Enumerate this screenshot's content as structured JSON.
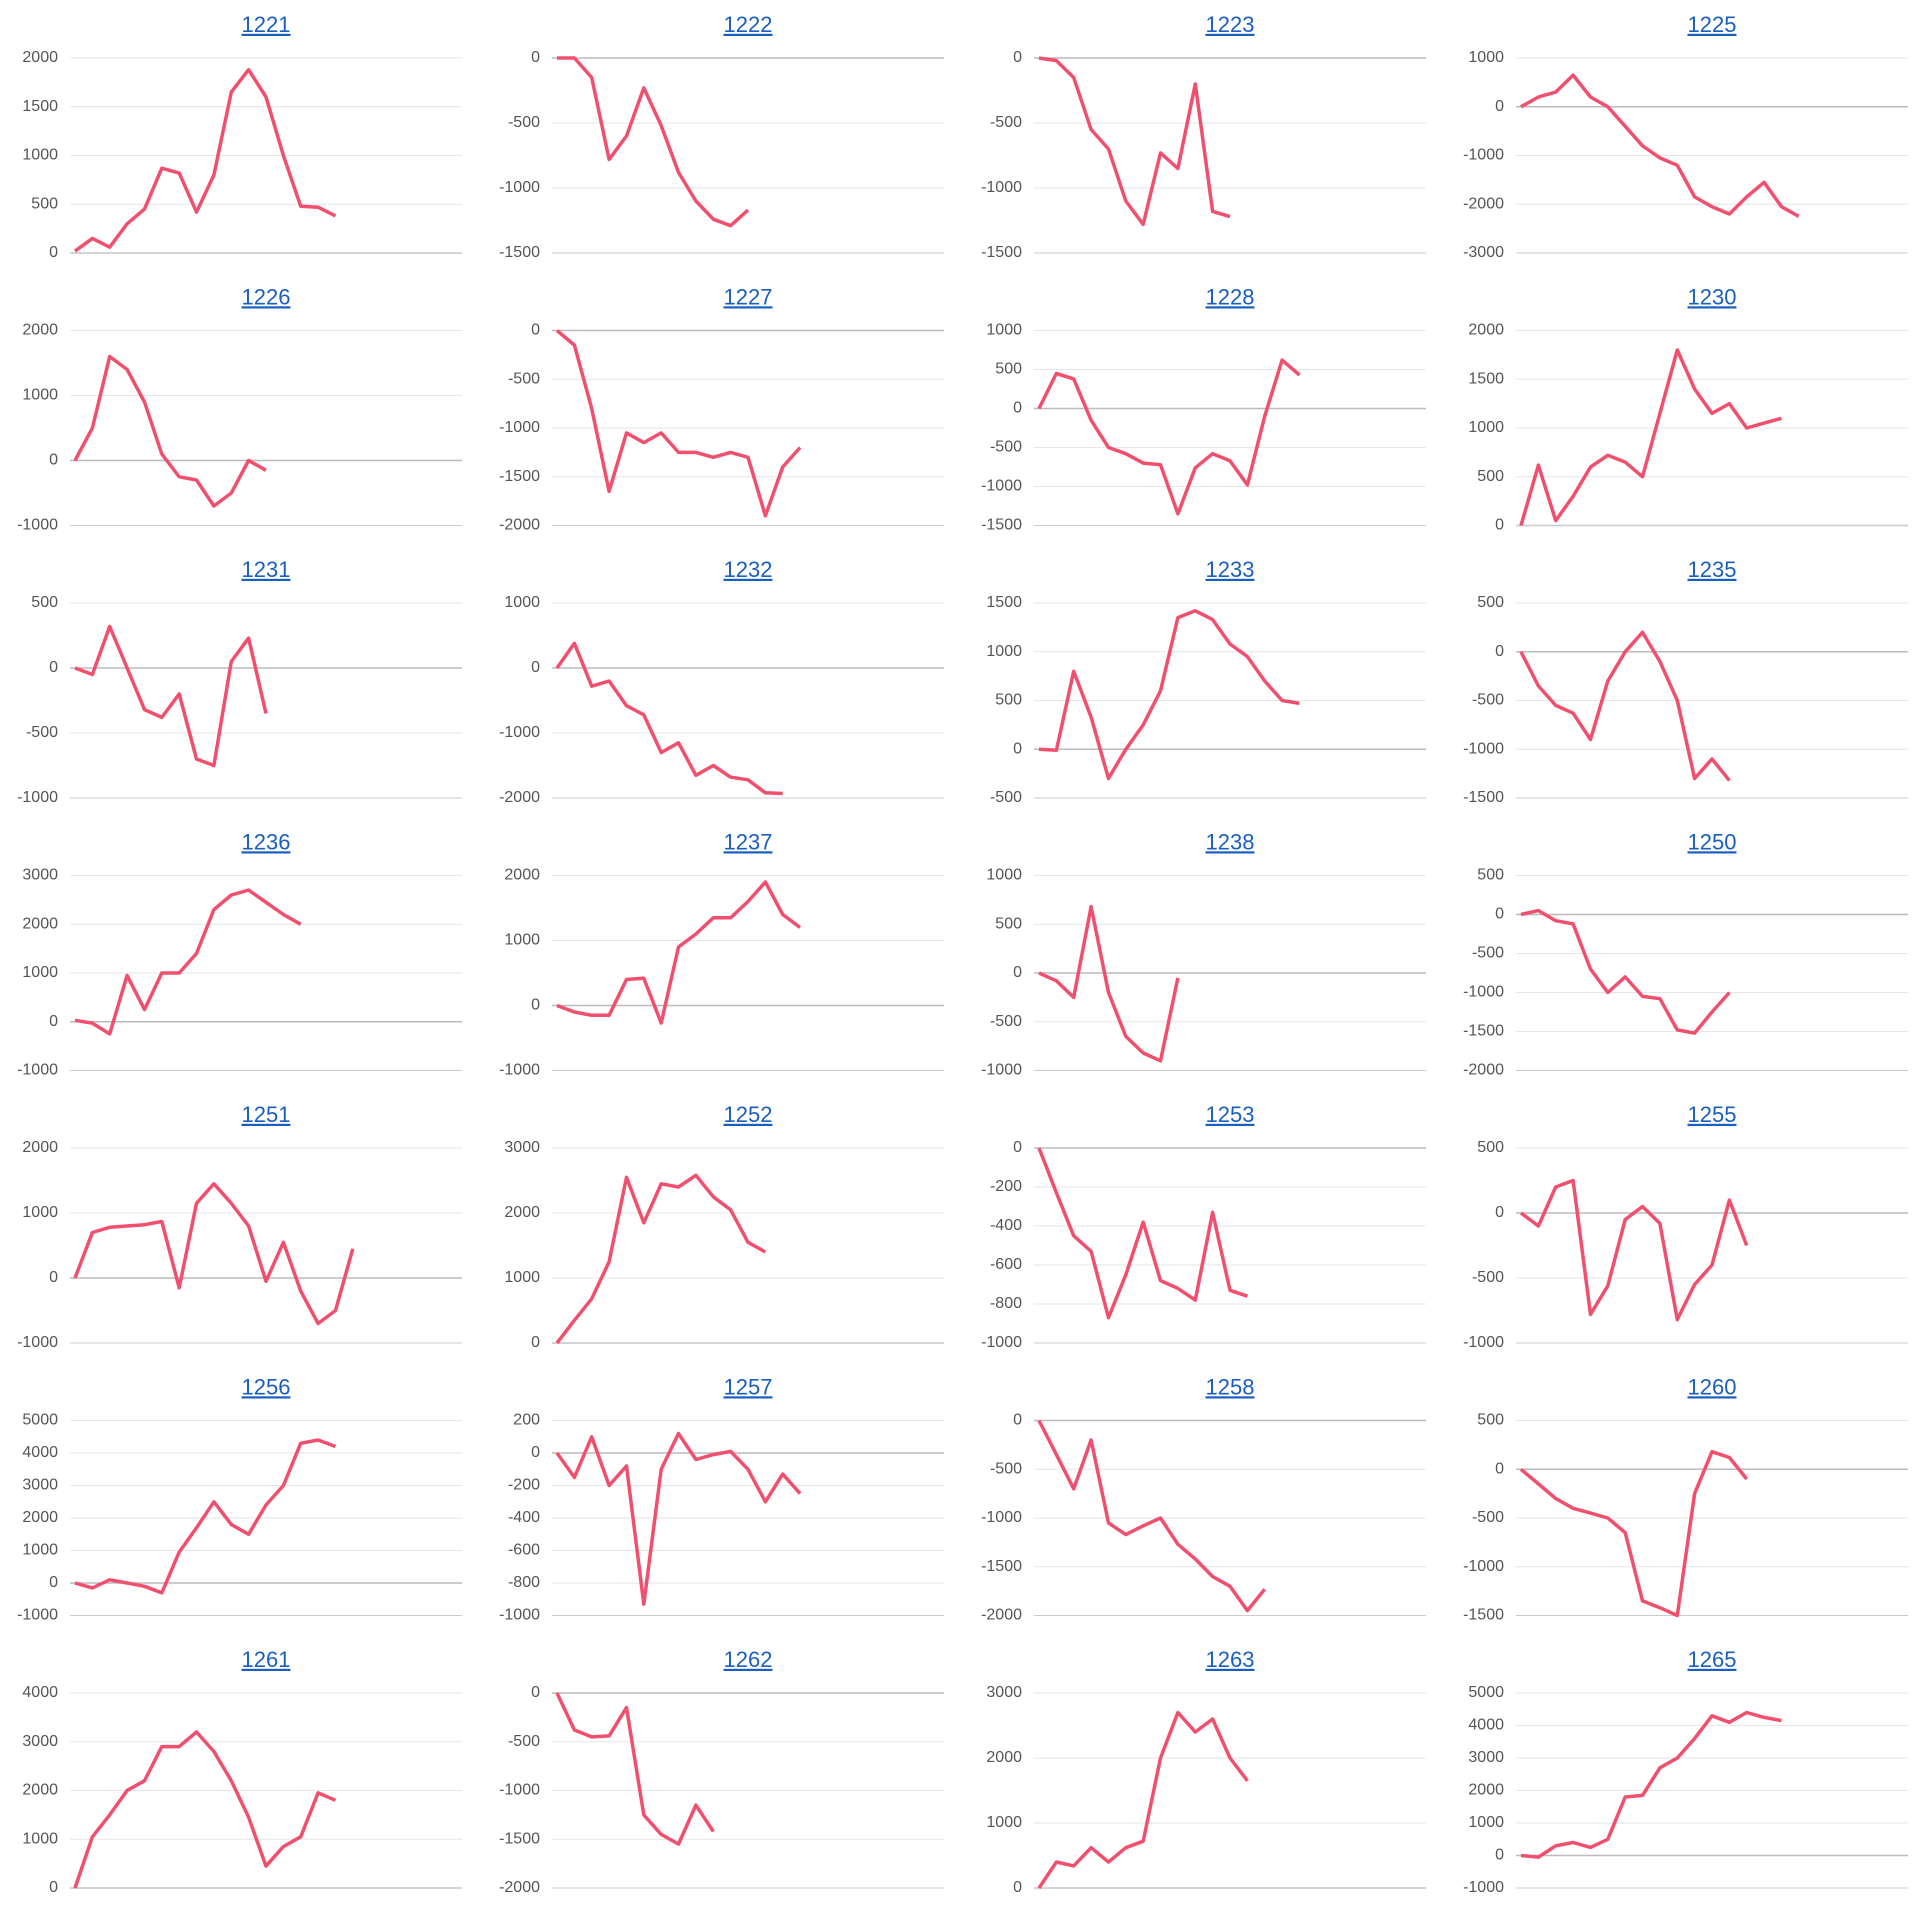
{
  "chart_data": [
    {
      "type": "line",
      "title": "1221",
      "color": "#f0506e",
      "ylim": [
        0,
        2000
      ],
      "yticks": [
        0,
        500,
        1000,
        1500,
        2000
      ],
      "values": [
        20,
        150,
        60,
        300,
        450,
        870,
        820,
        420,
        800,
        1650,
        1880,
        1600,
        1000,
        480,
        470,
        380
      ]
    },
    {
      "type": "line",
      "title": "1222",
      "color": "#f0506e",
      "ylim": [
        -1500,
        0
      ],
      "yticks": [
        -1500,
        -1000,
        -500,
        0
      ],
      "values": [
        0,
        0,
        -150,
        -780,
        -600,
        -230,
        -520,
        -880,
        -1100,
        -1240,
        -1290,
        -1170
      ]
    },
    {
      "type": "line",
      "title": "1223",
      "color": "#f0506e",
      "ylim": [
        -1500,
        0
      ],
      "yticks": [
        -1500,
        -1000,
        -500,
        0
      ],
      "values": [
        0,
        -20,
        -150,
        -550,
        -700,
        -1100,
        -1280,
        -730,
        -850,
        -200,
        -1180,
        -1220
      ]
    },
    {
      "type": "line",
      "title": "1225",
      "color": "#f0506e",
      "ylim": [
        -3000,
        1000
      ],
      "yticks": [
        -3000,
        -2000,
        -1000,
        0,
        1000
      ],
      "values": [
        0,
        200,
        300,
        650,
        200,
        0,
        -400,
        -800,
        -1050,
        -1200,
        -1850,
        -2050,
        -2200,
        -1850,
        -1550,
        -2050,
        -2250
      ]
    },
    {
      "type": "line",
      "title": "1226",
      "color": "#f0506e",
      "ylim": [
        -1000,
        2000
      ],
      "yticks": [
        -1000,
        0,
        1000,
        2000
      ],
      "values": [
        0,
        500,
        1600,
        1400,
        900,
        100,
        -250,
        -300,
        -700,
        -500,
        0,
        -150
      ]
    },
    {
      "type": "line",
      "title": "1227",
      "color": "#f0506e",
      "ylim": [
        -2000,
        0
      ],
      "yticks": [
        -2000,
        -1500,
        -1000,
        -500,
        0
      ],
      "values": [
        0,
        -150,
        -800,
        -1650,
        -1050,
        -1150,
        -1050,
        -1250,
        -1250,
        -1300,
        -1250,
        -1300,
        -1900,
        -1400,
        -1200
      ]
    },
    {
      "type": "line",
      "title": "1228",
      "color": "#f0506e",
      "ylim": [
        -1500,
        1000
      ],
      "yticks": [
        -1500,
        -1000,
        -500,
        0,
        500,
        1000
      ],
      "values": [
        0,
        450,
        380,
        -150,
        -500,
        -580,
        -700,
        -720,
        -1350,
        -760,
        -580,
        -670,
        -980,
        -100,
        620,
        430
      ]
    },
    {
      "type": "line",
      "title": "1230",
      "color": "#f0506e",
      "ylim": [
        0,
        2000
      ],
      "yticks": [
        0,
        500,
        1000,
        1500,
        2000
      ],
      "values": [
        0,
        620,
        50,
        300,
        600,
        720,
        650,
        500,
        1150,
        1800,
        1400,
        1150,
        1250,
        1000,
        1050,
        1100
      ]
    },
    {
      "type": "line",
      "title": "1231",
      "color": "#f0506e",
      "ylim": [
        -1000,
        500
      ],
      "yticks": [
        -1000,
        -500,
        0,
        500
      ],
      "values": [
        0,
        -50,
        320,
        0,
        -320,
        -380,
        -200,
        -700,
        -750,
        50,
        230,
        -350
      ]
    },
    {
      "type": "line",
      "title": "1232",
      "color": "#f0506e",
      "ylim": [
        -2000,
        1000
      ],
      "yticks": [
        -2000,
        -1000,
        0,
        1000
      ],
      "values": [
        0,
        380,
        -280,
        -200,
        -580,
        -720,
        -1300,
        -1150,
        -1650,
        -1500,
        -1680,
        -1720,
        -1920,
        -1930
      ]
    },
    {
      "type": "line",
      "title": "1233",
      "color": "#f0506e",
      "ylim": [
        -500,
        1500
      ],
      "yticks": [
        -500,
        0,
        500,
        1000,
        1500
      ],
      "values": [
        0,
        -10,
        800,
        330,
        -300,
        0,
        250,
        600,
        1350,
        1420,
        1330,
        1080,
        950,
        700,
        500,
        470
      ]
    },
    {
      "type": "line",
      "title": "1235",
      "color": "#f0506e",
      "ylim": [
        -1500,
        500
      ],
      "yticks": [
        -1500,
        -1000,
        -500,
        0,
        500
      ],
      "values": [
        0,
        -350,
        -550,
        -630,
        -900,
        -300,
        0,
        200,
        -100,
        -500,
        -1300,
        -1100,
        -1320
      ]
    },
    {
      "type": "line",
      "title": "1236",
      "color": "#f0506e",
      "ylim": [
        -1000,
        3000
      ],
      "yticks": [
        -1000,
        0,
        1000,
        2000,
        3000
      ],
      "values": [
        30,
        -30,
        -250,
        950,
        250,
        1000,
        1000,
        1400,
        2300,
        2600,
        2700,
        2450,
        2200,
        2000
      ]
    },
    {
      "type": "line",
      "title": "1237",
      "color": "#f0506e",
      "ylim": [
        -1000,
        2000
      ],
      "yticks": [
        -1000,
        0,
        1000,
        2000
      ],
      "values": [
        0,
        -100,
        -150,
        -150,
        400,
        420,
        -270,
        900,
        1100,
        1350,
        1350,
        1600,
        1900,
        1400,
        1200
      ]
    },
    {
      "type": "line",
      "title": "1238",
      "color": "#f0506e",
      "ylim": [
        -1000,
        1000
      ],
      "yticks": [
        -1000,
        -500,
        0,
        500,
        1000
      ],
      "values": [
        0,
        -80,
        -250,
        680,
        -200,
        -650,
        -820,
        -900,
        -50
      ]
    },
    {
      "type": "line",
      "title": "1250",
      "color": "#f0506e",
      "ylim": [
        -2000,
        500
      ],
      "yticks": [
        -2000,
        -1500,
        -1000,
        -500,
        0,
        500
      ],
      "values": [
        0,
        50,
        -80,
        -120,
        -700,
        -1000,
        -800,
        -1050,
        -1080,
        -1480,
        -1520,
        -1250,
        -1000
      ]
    },
    {
      "type": "line",
      "title": "1251",
      "color": "#f0506e",
      "ylim": [
        -1000,
        2000
      ],
      "yticks": [
        -1000,
        0,
        1000,
        2000
      ],
      "values": [
        0,
        700,
        780,
        800,
        820,
        870,
        -150,
        1150,
        1450,
        1150,
        800,
        -50,
        550,
        -200,
        -700,
        -500,
        450
      ]
    },
    {
      "type": "line",
      "title": "1252",
      "color": "#f0506e",
      "ylim": [
        0,
        3000
      ],
      "yticks": [
        0,
        1000,
        2000,
        3000
      ],
      "values": [
        0,
        350,
        680,
        1250,
        2550,
        1850,
        2450,
        2400,
        2580,
        2250,
        2050,
        1550,
        1400
      ]
    },
    {
      "type": "line",
      "title": "1253",
      "color": "#f0506e",
      "ylim": [
        -1000,
        0
      ],
      "yticks": [
        -1000,
        -800,
        -600,
        -400,
        -200,
        0
      ],
      "values": [
        0,
        -230,
        -450,
        -530,
        -870,
        -650,
        -380,
        -680,
        -720,
        -780,
        -330,
        -730,
        -760
      ]
    },
    {
      "type": "line",
      "title": "1255",
      "color": "#f0506e",
      "ylim": [
        -1000,
        500
      ],
      "yticks": [
        -1000,
        -500,
        0,
        500
      ],
      "values": [
        0,
        -100,
        200,
        250,
        -780,
        -560,
        -50,
        50,
        -80,
        -820,
        -550,
        -400,
        100,
        -250
      ]
    },
    {
      "type": "line",
      "title": "1256",
      "color": "#f0506e",
      "ylim": [
        -1000,
        5000
      ],
      "yticks": [
        -1000,
        0,
        1000,
        2000,
        3000,
        4000,
        5000
      ],
      "values": [
        0,
        -150,
        100,
        0,
        -100,
        -300,
        950,
        1700,
        2500,
        1800,
        1500,
        2400,
        3000,
        4300,
        4400,
        4200
      ]
    },
    {
      "type": "line",
      "title": "1257",
      "color": "#f0506e",
      "ylim": [
        -1000,
        200
      ],
      "yticks": [
        -1000,
        -800,
        -600,
        -400,
        -200,
        0,
        200
      ],
      "values": [
        0,
        -150,
        100,
        -200,
        -80,
        -930,
        -100,
        120,
        -40,
        -10,
        10,
        -100,
        -300,
        -130,
        -250
      ]
    },
    {
      "type": "line",
      "title": "1258",
      "color": "#f0506e",
      "ylim": [
        -2000,
        0
      ],
      "yticks": [
        -2000,
        -1500,
        -1000,
        -500,
        0
      ],
      "values": [
        0,
        -350,
        -700,
        -200,
        -1050,
        -1170,
        -1080,
        -1000,
        -1270,
        -1420,
        -1600,
        -1700,
        -1950,
        -1730
      ]
    },
    {
      "type": "line",
      "title": "1260",
      "color": "#f0506e",
      "ylim": [
        -1500,
        500
      ],
      "yticks": [
        -1500,
        -1000,
        -500,
        0,
        500
      ],
      "values": [
        0,
        -150,
        -300,
        -400,
        -450,
        -500,
        -650,
        -1350,
        -1420,
        -1500,
        -250,
        180,
        120,
        -100
      ]
    },
    {
      "type": "line",
      "title": "1261",
      "color": "#f0506e",
      "ylim": [
        0,
        4000
      ],
      "yticks": [
        0,
        1000,
        2000,
        3000,
        4000
      ],
      "values": [
        0,
        1050,
        1500,
        2000,
        2200,
        2900,
        2900,
        3200,
        2800,
        2200,
        1450,
        450,
        850,
        1050,
        1950,
        1800
      ]
    },
    {
      "type": "line",
      "title": "1262",
      "color": "#f0506e",
      "ylim": [
        -2000,
        0
      ],
      "yticks": [
        -2000,
        -1500,
        -1000,
        -500,
        0
      ],
      "values": [
        0,
        -380,
        -450,
        -440,
        -150,
        -1250,
        -1450,
        -1550,
        -1150,
        -1420
      ]
    },
    {
      "type": "line",
      "title": "1263",
      "color": "#f0506e",
      "ylim": [
        0,
        3000
      ],
      "yticks": [
        0,
        1000,
        2000,
        3000
      ],
      "values": [
        0,
        400,
        340,
        620,
        400,
        620,
        720,
        2000,
        2700,
        2400,
        2600,
        2000,
        1650
      ]
    },
    {
      "type": "line",
      "title": "1265",
      "color": "#f0506e",
      "ylim": [
        -1000,
        5000
      ],
      "yticks": [
        -1000,
        0,
        1000,
        2000,
        3000,
        4000,
        5000
      ],
      "values": [
        0,
        -50,
        300,
        400,
        250,
        500,
        1800,
        1850,
        2700,
        3000,
        3600,
        4300,
        4100,
        4400,
        4250,
        4150
      ]
    }
  ]
}
